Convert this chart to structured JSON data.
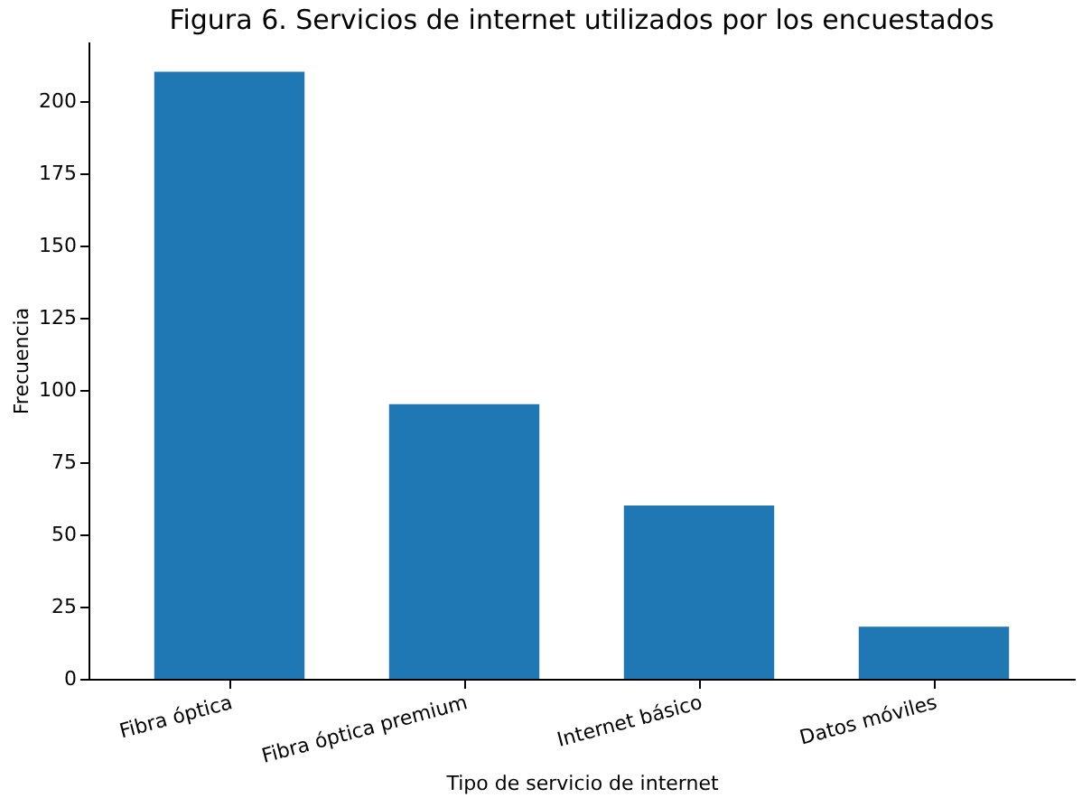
{
  "chart_data": {
    "type": "bar",
    "title": "Figura 6. Servicios de internet utilizados por los encuestados",
    "xlabel": "Tipo de servicio de internet",
    "ylabel": "Frecuencia",
    "categories": [
      "Fibra óptica",
      "Fibra óptica premium",
      "Internet básico",
      "Datos móviles"
    ],
    "values": [
      210,
      95,
      60,
      18
    ],
    "color": "#1f77b4",
    "ylim": [
      0,
      220.5
    ],
    "yticks": [
      0,
      25,
      50,
      75,
      100,
      125,
      150,
      175,
      200
    ],
    "grid": false
  }
}
